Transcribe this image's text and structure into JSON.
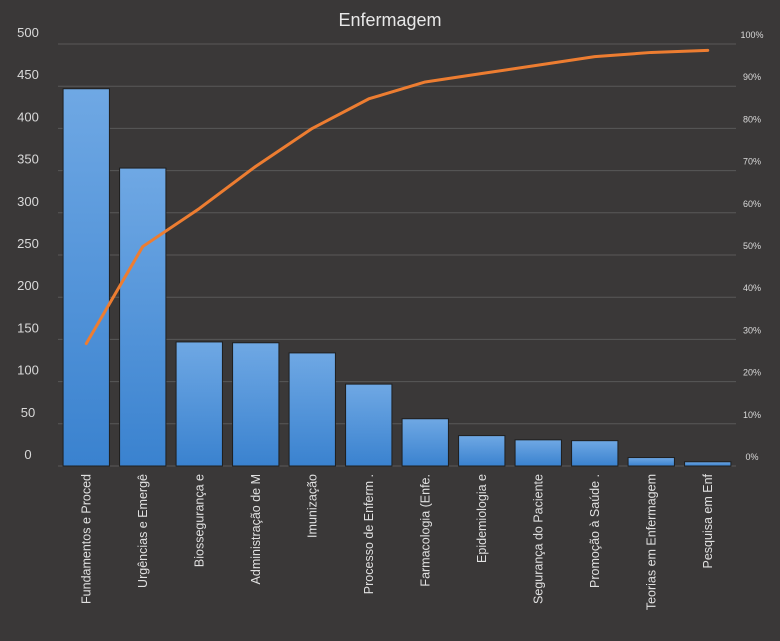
{
  "chart_data": {
    "type": "bar",
    "title": "Enfermagem",
    "categories": [
      "Fundamentos  e Proced",
      "Urgências e Emergê",
      "Biossegurança e",
      "Administração de M",
      "Imunização",
      "Processo de Enferm .",
      "Farmacologia (Enfe.",
      "Epidemiologia e",
      "Segurança do Paciente",
      "Promoção  à Saúde .",
      "Teorias em Enfermagem",
      "Pesquisa em Enf"
    ],
    "series": [
      {
        "type": "bar",
        "values": [
          447,
          353,
          147,
          146,
          134,
          97,
          56,
          36,
          31,
          30,
          10,
          5
        ],
        "color": "#4a90d9"
      },
      {
        "type": "line",
        "axis": "secondary",
        "values": [
          29,
          52,
          61,
          71,
          80,
          87,
          91,
          93,
          95,
          97,
          98,
          98.5
        ],
        "color": "#ed7d31"
      }
    ],
    "ylim": [
      0,
      500
    ],
    "yticks": [
      "500",
      "450",
      "400",
      "350",
      "300",
      "250",
      "200",
      "150",
      "100",
      "50",
      "0"
    ],
    "y2lim": [
      0,
      100
    ],
    "y2ticks": [
      "100%",
      "90%",
      "80%",
      "70%",
      "60%",
      "50%",
      "40%",
      "30%",
      "20%",
      "10%",
      "0%"
    ],
    "xlabel": "",
    "ylabel": "",
    "grid": true,
    "legend": "none"
  }
}
